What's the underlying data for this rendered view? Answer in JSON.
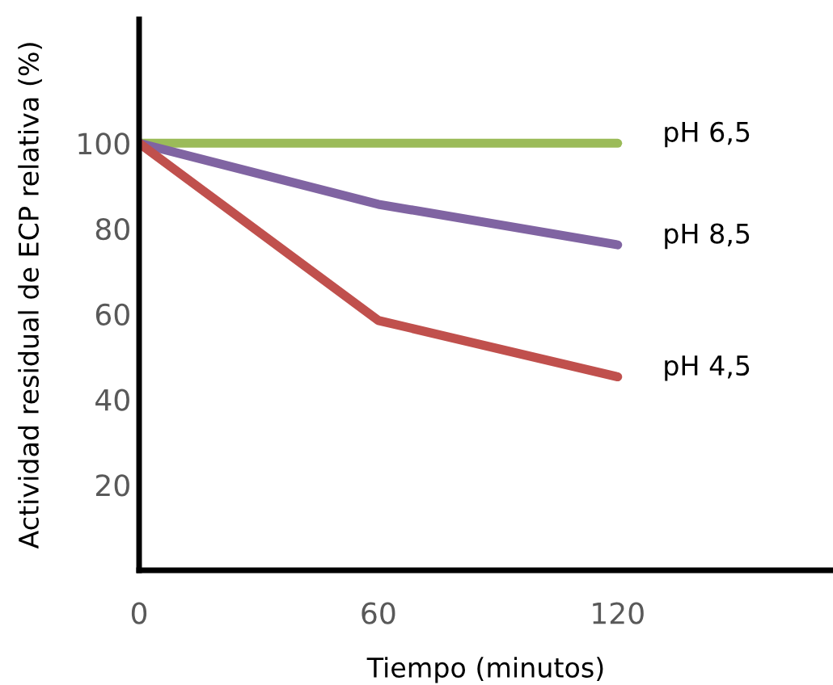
{
  "chart_data": {
    "type": "line",
    "xlabel": "Tiempo (minutos)",
    "ylabel": "Actividad residual de ECP relativa (%)",
    "x": [
      0,
      60,
      120
    ],
    "series": [
      {
        "name": "pH 6,5",
        "color": "#9bbb59",
        "values": [
          100,
          100,
          100
        ]
      },
      {
        "name": "pH 8,5",
        "color": "#8064a2",
        "values": [
          100,
          85.7,
          76.2
        ]
      },
      {
        "name": "pH 4,5",
        "color": "#c0504d",
        "values": [
          100,
          58.5,
          45.3
        ]
      }
    ],
    "xlim": [
      0,
      174
    ],
    "ylim": [
      0,
      129
    ],
    "xticks": [
      0,
      60,
      120
    ],
    "yticks": [
      20,
      40,
      60,
      80,
      100
    ],
    "grid": false,
    "legend": false,
    "marker": "none",
    "line_style": "solid"
  }
}
